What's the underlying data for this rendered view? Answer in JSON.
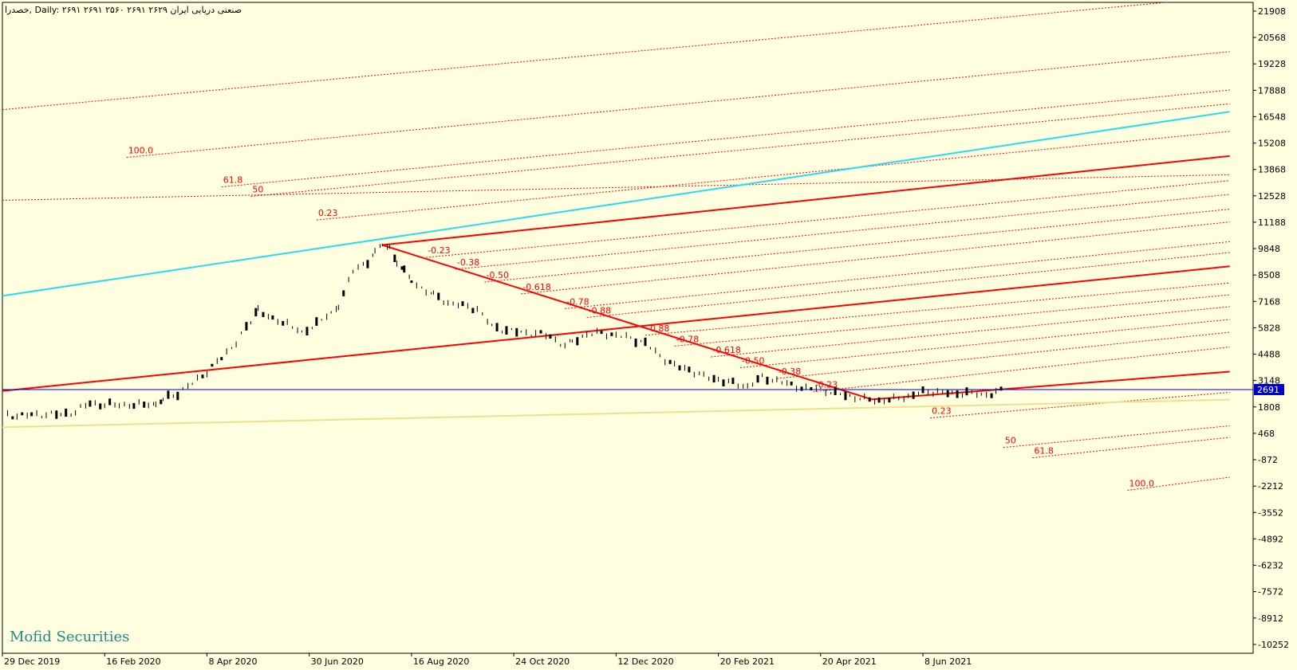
{
  "header": {
    "text": "خصدرا, Daily:  صنعتی دریایی ایران  ۲۶۲۹ ۲۶۹۱ ۲۵۶۰ ۲۶۹۱ ۲۶۹۱"
  },
  "watermark": "Mofid Securities",
  "colors": {
    "background": "#ffffe0",
    "price": "#000000",
    "fib": "#ff0000",
    "channel_red": "#ff0000",
    "channel_cyan": "#22ddf0",
    "support": "#f0e08c",
    "current_line": "#0000cc",
    "current_tag_bg": "#0000cc",
    "current_tag_text": "#ffffff"
  },
  "chart_data": {
    "type": "candlestick",
    "symbol": "خصدرا",
    "timeframe": "Daily",
    "ylim": [
      -10700,
      22350
    ],
    "y_ticks": [
      "21908",
      "20568",
      "19228",
      "17888",
      "16548",
      "15208",
      "13868",
      "12528",
      "11188",
      "9848",
      "8508",
      "7168",
      "5828",
      "4488",
      "3148",
      "1808",
      "468",
      "-872",
      "-2212",
      "-3552",
      "-4892",
      "-6232",
      "-7572",
      "-8912",
      "-10252"
    ],
    "x_ticks": [
      "29 Dec 2019",
      "16 Feb 2020",
      "8 Apr 2020",
      "30 Jun 2020",
      "16 Aug 2020",
      "24 Oct 2020",
      "12 Dec 2020",
      "20 Feb 2021",
      "20 Apr 2021",
      "8 Jun 2021"
    ],
    "x_tick_pos": [
      0,
      14,
      28,
      42,
      56,
      70,
      84,
      98,
      112,
      126
    ],
    "x_range": [
      0,
      171.2
    ],
    "current_price": 2691,
    "price_path": [
      [
        0,
        1400
      ],
      [
        2,
        1380
      ],
      [
        4,
        1400
      ],
      [
        6,
        1450
      ],
      [
        8,
        1420
      ],
      [
        10,
        1560
      ],
      [
        12,
        2020
      ],
      [
        14,
        1900
      ],
      [
        16,
        1950
      ],
      [
        18,
        1880
      ],
      [
        20,
        2000
      ],
      [
        21,
        1900
      ],
      [
        22,
        2200
      ],
      [
        24,
        2500
      ],
      [
        26,
        3000
      ],
      [
        28,
        3600
      ],
      [
        30,
        4300
      ],
      [
        32,
        5100
      ],
      [
        34,
        6150
      ],
      [
        35,
        6800
      ],
      [
        37,
        6200
      ],
      [
        39,
        6100
      ],
      [
        41,
        5500
      ],
      [
        43,
        6100
      ],
      [
        45,
        6500
      ],
      [
        46,
        7000
      ],
      [
        48,
        8700
      ],
      [
        50,
        9200
      ],
      [
        51,
        9650
      ],
      [
        52,
        10050
      ],
      [
        53,
        9900
      ],
      [
        54,
        9200
      ],
      [
        55,
        8700
      ],
      [
        56,
        8200
      ],
      [
        58,
        7700
      ],
      [
        59,
        7500
      ],
      [
        61,
        7100
      ],
      [
        63,
        6950
      ],
      [
        65,
        6800
      ],
      [
        67,
        5900
      ],
      [
        69,
        5700
      ],
      [
        71,
        5600
      ],
      [
        73,
        5550
      ],
      [
        75,
        5400
      ],
      [
        77,
        4900
      ],
      [
        78,
        5100
      ],
      [
        80,
        5500
      ],
      [
        82,
        5550
      ],
      [
        84,
        5450
      ],
      [
        86,
        5300
      ],
      [
        88,
        5050
      ],
      [
        90,
        4400
      ],
      [
        92,
        3900
      ],
      [
        94,
        3700
      ],
      [
        96,
        3350
      ],
      [
        98,
        3200
      ],
      [
        100,
        3000
      ],
      [
        102,
        2850
      ],
      [
        104,
        3300
      ],
      [
        106,
        3150
      ],
      [
        108,
        2900
      ],
      [
        110,
        2750
      ],
      [
        112,
        2700
      ],
      [
        114,
        2500
      ],
      [
        116,
        2350
      ],
      [
        118,
        2200
      ],
      [
        120,
        2130
      ],
      [
        122,
        2200
      ],
      [
        124,
        2350
      ],
      [
        126,
        2550
      ],
      [
        128,
        2600
      ],
      [
        130,
        2450
      ],
      [
        132,
        2550
      ],
      [
        134,
        2400
      ],
      [
        136,
        2550
      ],
      [
        137,
        2691
      ]
    ],
    "trendlines": [
      {
        "name": "cyan channel top",
        "color": "#22ddf0",
        "from": [
          0,
          7450
        ],
        "to": [
          168,
          16800
        ]
      },
      {
        "name": "red channel upper",
        "color": "#ff0000",
        "from": [
          52,
          10030
        ],
        "to": [
          168,
          14550
        ]
      },
      {
        "name": "red channel middle",
        "color": "#ff0000",
        "from": [
          0,
          2620
        ],
        "to": [
          168,
          8950
        ]
      },
      {
        "name": "red channel lower",
        "color": "#ff0000",
        "from": [
          119,
          2190
        ],
        "to": [
          168,
          3600
        ]
      },
      {
        "name": "main fib swing",
        "color": "#ff0000",
        "from": [
          52,
          10030
        ],
        "to": [
          119,
          2190
        ]
      },
      {
        "name": "support",
        "color": "#f0e08c",
        "from": [
          0,
          780
        ],
        "to": [
          168,
          2180
        ]
      }
    ],
    "fib_lines": [
      {
        "label": "100.0",
        "start": [
          17,
          14480
        ],
        "end": [
          168,
          19850
        ]
      },
      {
        "label": "61.8",
        "start": [
          30,
          12980
        ],
        "end": [
          168,
          17900
        ]
      },
      {
        "label": "50",
        "start": [
          34,
          12500
        ],
        "end": [
          168,
          17200
        ]
      },
      {
        "label": "0.23",
        "start": [
          43,
          11300
        ],
        "end": [
          168,
          15800
        ]
      },
      {
        "label": "-0.23",
        "start": [
          58,
          9400
        ],
        "end": [
          168,
          13300
        ]
      },
      {
        "label": "-0.38",
        "start": [
          62,
          8800
        ],
        "end": [
          168,
          12600
        ]
      },
      {
        "label": "-0.50",
        "start": [
          66,
          8150
        ],
        "end": [
          168,
          11850
        ]
      },
      {
        "label": "-0.618",
        "start": [
          71,
          7550
        ],
        "end": [
          168,
          11200
        ]
      },
      {
        "label": "-0.78",
        "start": [
          77,
          6800
        ],
        "end": [
          168,
          10200
        ]
      },
      {
        "label": "-0.88",
        "start": [
          80,
          6350
        ],
        "end": [
          168,
          9650
        ]
      },
      {
        "label": "-0.88",
        "start": [
          88,
          5450
        ],
        "end": [
          168,
          8100
        ]
      },
      {
        "label": "-0.78",
        "start": [
          92,
          4900
        ],
        "end": [
          168,
          7500
        ]
      },
      {
        "label": "-0.618",
        "start": [
          97,
          4350
        ],
        "end": [
          168,
          6900
        ]
      },
      {
        "label": "-0.50",
        "start": [
          101,
          3800
        ],
        "end": [
          168,
          6250
        ]
      },
      {
        "label": "-0.38",
        "start": [
          106,
          3250
        ],
        "end": [
          168,
          5600
        ]
      },
      {
        "label": "-0.23",
        "start": [
          111,
          2580
        ],
        "end": [
          168,
          4850
        ]
      },
      {
        "label": "0.23",
        "start": [
          127,
          1250
        ],
        "end": [
          168,
          2550
        ]
      },
      {
        "label": "50",
        "start": [
          137,
          -250
        ],
        "end": [
          168,
          850
        ]
      },
      {
        "label": "61.8",
        "start": [
          141,
          -770
        ],
        "end": [
          168,
          260
        ]
      },
      {
        "label": "100.0",
        "start": [
          154,
          -2430
        ],
        "end": [
          168,
          -1760
        ]
      },
      {
        "label": "",
        "start": [
          0,
          16900
        ],
        "end": [
          168,
          22650
        ]
      },
      {
        "label": "",
        "start": [
          0,
          12300
        ],
        "end": [
          168,
          13600
        ]
      }
    ]
  }
}
